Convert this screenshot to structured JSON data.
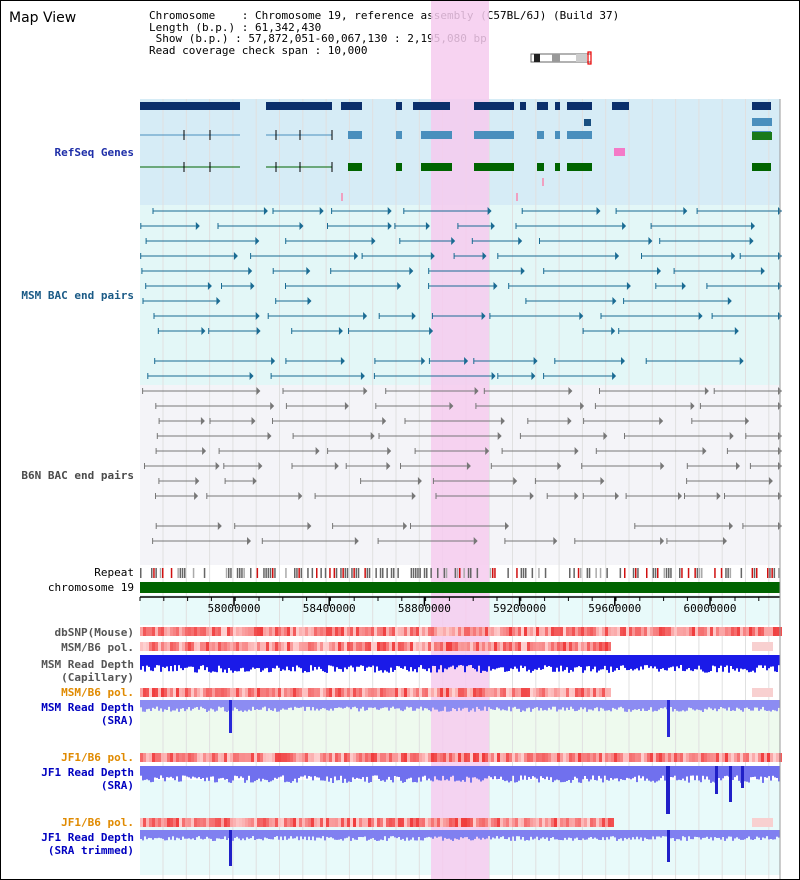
{
  "page_title": "Map View",
  "info": {
    "chromosome": "Chromosome    : Chromosome 19, reference assembly (C57BL/6J) (Build 37)",
    "length": "Length (b.p.) : 61,342,430",
    "show": " Show (b.p.) : 57,872,051-60,067,130 : 2,195,080 bp",
    "span": "Read coverage check span : 10,000"
  },
  "track_labels": {
    "refseq": "RefSeq Genes",
    "msm_bac": "MSM BAC end pairs",
    "b6n_bac": "B6N BAC end pairs",
    "repeat": "Repeat",
    "chromosome": "chromosome 19",
    "dbsnp": "dbSNP(Mouse)",
    "msm_b6_pol_1": "MSM/B6 pol.",
    "msm_depth_cap_1": "MSM Read Depth",
    "msm_depth_cap_2": "(Capillary)",
    "msm_b6_pol_2": "MSM/B6 pol.",
    "msm_depth_sra_1": "MSM Read Depth",
    "msm_depth_sra_2": "(SRA)",
    "jf1_b6_pol_1": "JF1/B6 pol.",
    "jf1_depth_sra_1": "JF1 Read Depth",
    "jf1_depth_sra_2": "(SRA)",
    "jf1_b6_pol_2": "JF1/B6 pol.",
    "jf1_depth_trim_1": "JF1 Read Depth",
    "jf1_depth_trim_2": "(SRA trimmed)"
  },
  "axis_ticks": [
    "58000000",
    "58400000",
    "58800000",
    "59200000",
    "59600000",
    "60000000"
  ],
  "colors": {
    "refseq_label": "#1e2ea8",
    "msm_label": "#1a5a86",
    "b6n_label": "#4a4a4a",
    "pol_label": "#e08a00",
    "depth_label": "#0000c0",
    "highlight": "#f6cbee",
    "gene_dark": "#0b2f6b",
    "gene_light": "#4a8fbd",
    "gene_green": "#006400",
    "depth_blue": "#1515e0",
    "depth_light": "#8080f0"
  }
}
